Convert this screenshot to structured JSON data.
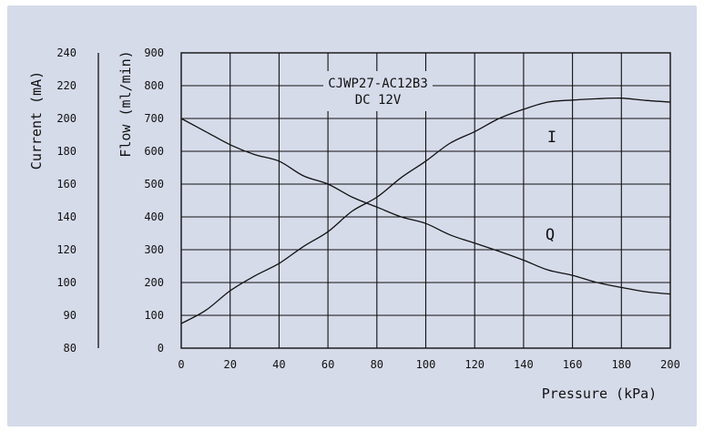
{
  "chart_data": {
    "type": "line",
    "title_lines": [
      "CJWP27-AC12B3",
      "DC 12V"
    ],
    "xlabel": "Pressure (kPa)",
    "ylabel_left": "Current (mA)",
    "ylabel_right": "Flow (ml/min)",
    "x_ticks": [
      "0",
      "20",
      "40",
      "60",
      "80",
      "100",
      "120",
      "140",
      "160",
      "180",
      "200"
    ],
    "flow_ticks": [
      "0",
      "100",
      "200",
      "300",
      "400",
      "500",
      "600",
      "700",
      "800",
      "900"
    ],
    "current_ticks": [
      "80",
      "90",
      "100",
      "120",
      "140",
      "160",
      "180",
      "200",
      "220",
      "240"
    ],
    "xlim": [
      0,
      200
    ],
    "ylim": [
      0,
      900
    ],
    "grid": true,
    "series": [
      {
        "name": "Q",
        "points": [
          [
            0,
            700
          ],
          [
            10,
            660
          ],
          [
            20,
            620
          ],
          [
            30,
            590
          ],
          [
            40,
            570
          ],
          [
            50,
            525
          ],
          [
            60,
            500
          ],
          [
            70,
            460
          ],
          [
            80,
            430
          ],
          [
            90,
            400
          ],
          [
            100,
            380
          ],
          [
            110,
            345
          ],
          [
            120,
            320
          ],
          [
            130,
            295
          ],
          [
            140,
            268
          ],
          [
            150,
            238
          ],
          [
            160,
            222
          ],
          [
            170,
            200
          ],
          [
            180,
            185
          ],
          [
            190,
            172
          ],
          [
            200,
            165
          ]
        ]
      },
      {
        "name": "I",
        "points": [
          [
            0,
            75
          ],
          [
            10,
            115
          ],
          [
            20,
            175
          ],
          [
            30,
            220
          ],
          [
            40,
            258
          ],
          [
            50,
            310
          ],
          [
            60,
            355
          ],
          [
            70,
            418
          ],
          [
            80,
            460
          ],
          [
            90,
            520
          ],
          [
            100,
            570
          ],
          [
            110,
            625
          ],
          [
            120,
            660
          ],
          [
            130,
            700
          ],
          [
            140,
            728
          ],
          [
            150,
            750
          ],
          [
            160,
            756
          ],
          [
            170,
            760
          ],
          [
            180,
            762
          ],
          [
            190,
            755
          ],
          [
            200,
            750
          ]
        ]
      }
    ]
  }
}
